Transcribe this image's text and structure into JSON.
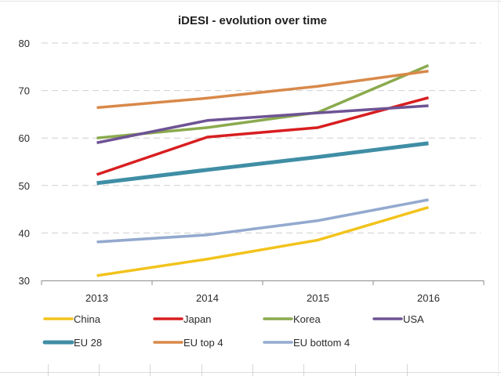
{
  "chart_data": {
    "type": "line",
    "title": "iDESI - evolution over time",
    "xlabel": "",
    "ylabel": "",
    "categories": [
      "2013",
      "2014",
      "2015",
      "2016"
    ],
    "ylim": [
      30,
      80
    ],
    "yticks": [
      30,
      40,
      50,
      60,
      70,
      80
    ],
    "grid": "horizontal dashed",
    "legend_position": "bottom",
    "series": [
      {
        "name": "China",
        "color": "#f2c31c",
        "values": [
          31.0,
          34.5,
          38.5,
          45.4
        ]
      },
      {
        "name": "Japan",
        "color": "#d81e20",
        "values": [
          52.3,
          60.2,
          62.2,
          68.5
        ]
      },
      {
        "name": "Korea",
        "color": "#8aaa4e",
        "values": [
          60.0,
          62.2,
          65.4,
          75.3
        ]
      },
      {
        "name": "USA",
        "color": "#6e5394",
        "values": [
          59.0,
          63.7,
          65.3,
          66.8
        ]
      },
      {
        "name": "EU 28",
        "color": "#3f8ea5",
        "values": [
          50.5,
          53.3,
          56.0,
          58.9
        ]
      },
      {
        "name": "EU top 4",
        "color": "#d8894a",
        "values": [
          66.4,
          68.4,
          70.9,
          74.1
        ]
      },
      {
        "name": "EU bottom 4",
        "color": "#93a9cf",
        "values": [
          38.1,
          39.6,
          42.6,
          47.0
        ]
      }
    ]
  }
}
